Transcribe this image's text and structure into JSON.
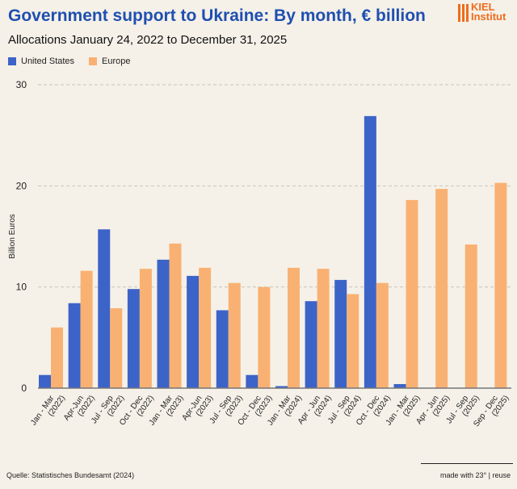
{
  "header": {
    "title": "Government support to Ukraine: By month, € billion",
    "subtitle": "Allocations January 24, 2022 to December 31, 2025",
    "logo": "KIEL Institut"
  },
  "footer": {
    "source": "Quelle: Statistisches Bundesamt (2024)",
    "credit": "made with 23° | reuse"
  },
  "colors": {
    "us": "#3c63c8",
    "europe": "#f9b173"
  },
  "chart_data": {
    "type": "bar",
    "title": "Government support to Ukraine: By month, € billion",
    "ylabel": "Billion Euros",
    "xlabel": "",
    "ylim": [
      0,
      30
    ],
    "yticks": [
      0,
      10,
      20,
      30
    ],
    "grid": true,
    "legend": "top-left",
    "categories": [
      [
        "Jan - Mar",
        "(2022)"
      ],
      [
        "Apr-Jun",
        "(2022)"
      ],
      [
        "Jul - Sep",
        "(2022)"
      ],
      [
        "Oct - Dec",
        "(2022)"
      ],
      [
        "Jan - Mar",
        "(2023)"
      ],
      [
        "Apr-Jun",
        "(2023)"
      ],
      [
        "Jul - Sep",
        "(2023)"
      ],
      [
        "Oct - Dec",
        "(2023)"
      ],
      [
        "Jan - Mar",
        "(2024)"
      ],
      [
        "Apr - Jun",
        "(2024)"
      ],
      [
        "Jul - Sep",
        "(2024)"
      ],
      [
        "Oct - Dec",
        "(2024)"
      ],
      [
        "Jan - Mar",
        "(2025)"
      ],
      [
        "Apr - Jun",
        "(2025)"
      ],
      [
        "Jul - Sep",
        "(2025)"
      ],
      [
        "Sep - Dec",
        "(2025)"
      ]
    ],
    "series": [
      {
        "name": "United States",
        "values": [
          1.3,
          8.4,
          15.7,
          9.8,
          12.7,
          11.1,
          7.7,
          1.3,
          0.2,
          8.6,
          10.7,
          26.9,
          0.4,
          0,
          0,
          0
        ]
      },
      {
        "name": "Europe",
        "values": [
          6.0,
          11.6,
          7.9,
          11.8,
          14.3,
          11.9,
          10.4,
          10.0,
          11.9,
          11.8,
          9.3,
          10.4,
          18.6,
          19.7,
          14.2,
          20.3
        ]
      }
    ]
  }
}
